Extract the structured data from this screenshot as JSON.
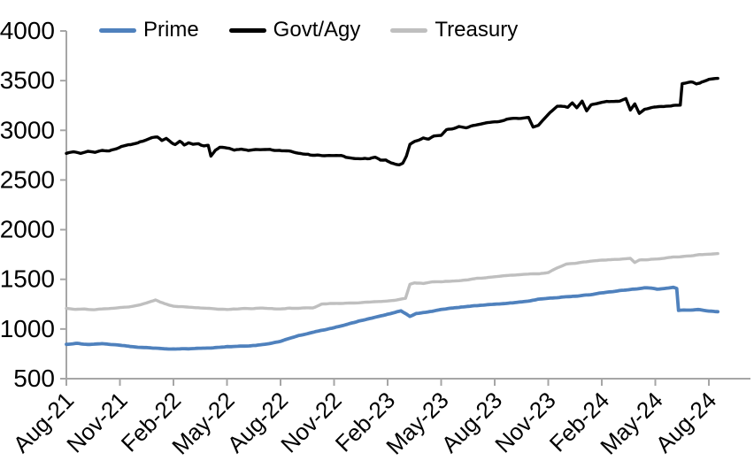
{
  "chart_data": {
    "type": "line",
    "title": "",
    "grid": false,
    "legend_position": "top",
    "axis_color": "#a6a6a6",
    "y_axis": {
      "min": 500,
      "max": 4000,
      "step": 500,
      "ticks": [
        4000,
        3500,
        3000,
        2500,
        2000,
        1500,
        1000,
        500
      ]
    },
    "x_axis": {
      "ticks": [
        {
          "label": "Aug-21",
          "month": 0
        },
        {
          "label": "Nov-21",
          "month": 3
        },
        {
          "label": "Feb-22",
          "month": 6
        },
        {
          "label": "May-22",
          "month": 9
        },
        {
          "label": "Aug-22",
          "month": 12
        },
        {
          "label": "Nov-22",
          "month": 15
        },
        {
          "label": "Feb-23",
          "month": 18
        },
        {
          "label": "May-23",
          "month": 21
        },
        {
          "label": "Aug-23",
          "month": 24
        },
        {
          "label": "Nov-23",
          "month": 27
        },
        {
          "label": "Feb-24",
          "month": 30
        },
        {
          "label": "May-24",
          "month": 33
        },
        {
          "label": "Aug-24",
          "month": 36
        }
      ],
      "months_span": 36,
      "data_end_month": 36.5
    },
    "series": [
      {
        "name": "Prime",
        "color": "#4f81bd",
        "points": [
          [
            0,
            848
          ],
          [
            0.6,
            854
          ],
          [
            1.2,
            845
          ],
          [
            2,
            850
          ],
          [
            2.6,
            843
          ],
          [
            3,
            838
          ],
          [
            3.6,
            824
          ],
          [
            4,
            815
          ],
          [
            4.6,
            808
          ],
          [
            5,
            804
          ],
          [
            5.6,
            799
          ],
          [
            6,
            797
          ],
          [
            6.6,
            800
          ],
          [
            7.2,
            803
          ],
          [
            8,
            809
          ],
          [
            8.6,
            815
          ],
          [
            9,
            821
          ],
          [
            9.6,
            825
          ],
          [
            10,
            829
          ],
          [
            10.6,
            834
          ],
          [
            11,
            843
          ],
          [
            11.5,
            855
          ],
          [
            12,
            880
          ],
          [
            12.5,
            905
          ],
          [
            13,
            932
          ],
          [
            13.5,
            955
          ],
          [
            14,
            976
          ],
          [
            14.5,
            995
          ],
          [
            15,
            1013
          ],
          [
            15.5,
            1038
          ],
          [
            16,
            1063
          ],
          [
            16.5,
            1085
          ],
          [
            17,
            1106
          ],
          [
            17.5,
            1128
          ],
          [
            18,
            1148
          ],
          [
            18.4,
            1165
          ],
          [
            18.75,
            1181
          ],
          [
            19.05,
            1152
          ],
          [
            19.25,
            1128
          ],
          [
            19.6,
            1158
          ],
          [
            20,
            1167
          ],
          [
            20.5,
            1180
          ],
          [
            21,
            1193
          ],
          [
            21.5,
            1206
          ],
          [
            22,
            1218
          ],
          [
            22.5,
            1228
          ],
          [
            23,
            1237
          ],
          [
            23.5,
            1243
          ],
          [
            24,
            1249
          ],
          [
            24.5,
            1256
          ],
          [
            25,
            1263
          ],
          [
            25.5,
            1274
          ],
          [
            26,
            1287
          ],
          [
            26.4,
            1300
          ],
          [
            27,
            1309
          ],
          [
            27.5,
            1315
          ],
          [
            28,
            1323
          ],
          [
            28.5,
            1331
          ],
          [
            29,
            1341
          ],
          [
            29.5,
            1350
          ],
          [
            30,
            1361
          ],
          [
            30.5,
            1373
          ],
          [
            31,
            1386
          ],
          [
            31.5,
            1396
          ],
          [
            32,
            1406
          ],
          [
            32.4,
            1415
          ],
          [
            32.8,
            1410
          ],
          [
            33.1,
            1400
          ],
          [
            33.5,
            1410
          ],
          [
            34,
            1418
          ],
          [
            34.2,
            1408
          ],
          [
            34.3,
            1186
          ],
          [
            34.6,
            1190
          ],
          [
            35,
            1194
          ],
          [
            35.4,
            1196
          ],
          [
            35.7,
            1184
          ],
          [
            36,
            1179
          ],
          [
            36.5,
            1174
          ]
        ]
      },
      {
        "name": "Govt/Agy",
        "color": "#000000",
        "points": [
          [
            0,
            2778
          ],
          [
            0.4,
            2792
          ],
          [
            0.8,
            2772
          ],
          [
            1.2,
            2794
          ],
          [
            1.6,
            2786
          ],
          [
            2,
            2801
          ],
          [
            2.4,
            2792
          ],
          [
            2.8,
            2812
          ],
          [
            3.2,
            2836
          ],
          [
            3.6,
            2852
          ],
          [
            4,
            2881
          ],
          [
            4.4,
            2902
          ],
          [
            4.8,
            2922
          ],
          [
            5.1,
            2929
          ],
          [
            5.35,
            2896
          ],
          [
            5.6,
            2916
          ],
          [
            5.9,
            2882
          ],
          [
            6.1,
            2864
          ],
          [
            6.35,
            2886
          ],
          [
            6.6,
            2844
          ],
          [
            6.85,
            2866
          ],
          [
            7.1,
            2852
          ],
          [
            7.4,
            2862
          ],
          [
            7.7,
            2846
          ],
          [
            7.95,
            2858
          ],
          [
            8.1,
            2744
          ],
          [
            8.35,
            2800
          ],
          [
            8.6,
            2826
          ],
          [
            9,
            2818
          ],
          [
            9.4,
            2802
          ],
          [
            9.8,
            2814
          ],
          [
            10.2,
            2797
          ],
          [
            10.6,
            2810
          ],
          [
            11,
            2800
          ],
          [
            11.4,
            2812
          ],
          [
            11.8,
            2794
          ],
          [
            12.2,
            2786
          ],
          [
            12.6,
            2779
          ],
          [
            13,
            2773
          ],
          [
            13.4,
            2764
          ],
          [
            13.8,
            2758
          ],
          [
            14.2,
            2752
          ],
          [
            14.6,
            2746
          ],
          [
            15,
            2739
          ],
          [
            15.4,
            2744
          ],
          [
            15.8,
            2728
          ],
          [
            16.2,
            2722
          ],
          [
            16.6,
            2713
          ],
          [
            17,
            2706
          ],
          [
            17.3,
            2719
          ],
          [
            17.6,
            2696
          ],
          [
            17.9,
            2708
          ],
          [
            18.2,
            2678
          ],
          [
            18.45,
            2664
          ],
          [
            18.65,
            2657
          ],
          [
            18.85,
            2672
          ],
          [
            19.05,
            2742
          ],
          [
            19.25,
            2864
          ],
          [
            19.5,
            2892
          ],
          [
            19.75,
            2908
          ],
          [
            20,
            2926
          ],
          [
            20.3,
            2912
          ],
          [
            20.6,
            2938
          ],
          [
            21,
            2950
          ],
          [
            21.3,
            3006
          ],
          [
            21.6,
            3018
          ],
          [
            22,
            3036
          ],
          [
            22.4,
            3028
          ],
          [
            22.8,
            3052
          ],
          [
            23.2,
            3058
          ],
          [
            23.6,
            3072
          ],
          [
            24,
            3092
          ],
          [
            24.4,
            3104
          ],
          [
            24.8,
            3114
          ],
          [
            25.2,
            3122
          ],
          [
            25.6,
            3131
          ],
          [
            25.9,
            3136
          ],
          [
            26.15,
            3040
          ],
          [
            26.45,
            3052
          ],
          [
            26.8,
            3122
          ],
          [
            27.1,
            3180
          ],
          [
            27.5,
            3244
          ],
          [
            27.8,
            3236
          ],
          [
            28.1,
            3230
          ],
          [
            28.35,
            3270
          ],
          [
            28.6,
            3224
          ],
          [
            28.9,
            3290
          ],
          [
            29.15,
            3188
          ],
          [
            29.4,
            3248
          ],
          [
            29.7,
            3262
          ],
          [
            30,
            3280
          ],
          [
            30.4,
            3290
          ],
          [
            30.8,
            3296
          ],
          [
            31.1,
            3304
          ],
          [
            31.35,
            3320
          ],
          [
            31.6,
            3204
          ],
          [
            31.85,
            3270
          ],
          [
            32.1,
            3176
          ],
          [
            32.4,
            3220
          ],
          [
            32.8,
            3236
          ],
          [
            33.2,
            3240
          ],
          [
            33.6,
            3244
          ],
          [
            34,
            3249
          ],
          [
            34.4,
            3253
          ],
          [
            34.5,
            3467
          ],
          [
            34.8,
            3476
          ],
          [
            35.1,
            3481
          ],
          [
            35.3,
            3470
          ],
          [
            35.6,
            3490
          ],
          [
            36,
            3509
          ],
          [
            36.5,
            3523
          ]
        ]
      },
      {
        "name": "Treasury",
        "color": "#bfbfbf",
        "points": [
          [
            0,
            1206
          ],
          [
            0.5,
            1196
          ],
          [
            1,
            1201
          ],
          [
            1.5,
            1193
          ],
          [
            2,
            1203
          ],
          [
            2.5,
            1209
          ],
          [
            3,
            1213
          ],
          [
            3.5,
            1223
          ],
          [
            4,
            1239
          ],
          [
            4.6,
            1269
          ],
          [
            5,
            1289
          ],
          [
            5.4,
            1263
          ],
          [
            6,
            1229
          ],
          [
            6.5,
            1223
          ],
          [
            7,
            1219
          ],
          [
            7.5,
            1213
          ],
          [
            8,
            1211
          ],
          [
            8.5,
            1203
          ],
          [
            9,
            1199
          ],
          [
            9.5,
            1203
          ],
          [
            10,
            1206
          ],
          [
            10.5,
            1203
          ],
          [
            11,
            1209
          ],
          [
            11.5,
            1205
          ],
          [
            12,
            1203
          ],
          [
            12.5,
            1207
          ],
          [
            13,
            1209
          ],
          [
            13.8,
            1213
          ],
          [
            14.3,
            1249
          ],
          [
            15,
            1256
          ],
          [
            15.5,
            1259
          ],
          [
            16,
            1263
          ],
          [
            16.5,
            1267
          ],
          [
            17,
            1271
          ],
          [
            17.5,
            1276
          ],
          [
            18,
            1283
          ],
          [
            18.5,
            1290
          ],
          [
            19,
            1312
          ],
          [
            19.25,
            1452
          ],
          [
            19.5,
            1466
          ],
          [
            20,
            1461
          ],
          [
            20.5,
            1471
          ],
          [
            21,
            1479
          ],
          [
            21.5,
            1483
          ],
          [
            22,
            1489
          ],
          [
            22.5,
            1496
          ],
          [
            23,
            1506
          ],
          [
            23.5,
            1516
          ],
          [
            24,
            1526
          ],
          [
            24.5,
            1533
          ],
          [
            25,
            1541
          ],
          [
            25.5,
            1546
          ],
          [
            26,
            1553
          ],
          [
            26.5,
            1559
          ],
          [
            27,
            1569
          ],
          [
            27.5,
            1616
          ],
          [
            28,
            1649
          ],
          [
            28.5,
            1663
          ],
          [
            29,
            1676
          ],
          [
            29.5,
            1686
          ],
          [
            30,
            1693
          ],
          [
            30.5,
            1699
          ],
          [
            31,
            1703
          ],
          [
            31.6,
            1712
          ],
          [
            31.85,
            1670
          ],
          [
            32.1,
            1696
          ],
          [
            32.5,
            1700
          ],
          [
            33,
            1704
          ],
          [
            33.5,
            1713
          ],
          [
            34,
            1723
          ],
          [
            34.5,
            1731
          ],
          [
            35,
            1739
          ],
          [
            35.5,
            1746
          ],
          [
            36,
            1753
          ],
          [
            36.5,
            1759
          ]
        ]
      }
    ]
  }
}
